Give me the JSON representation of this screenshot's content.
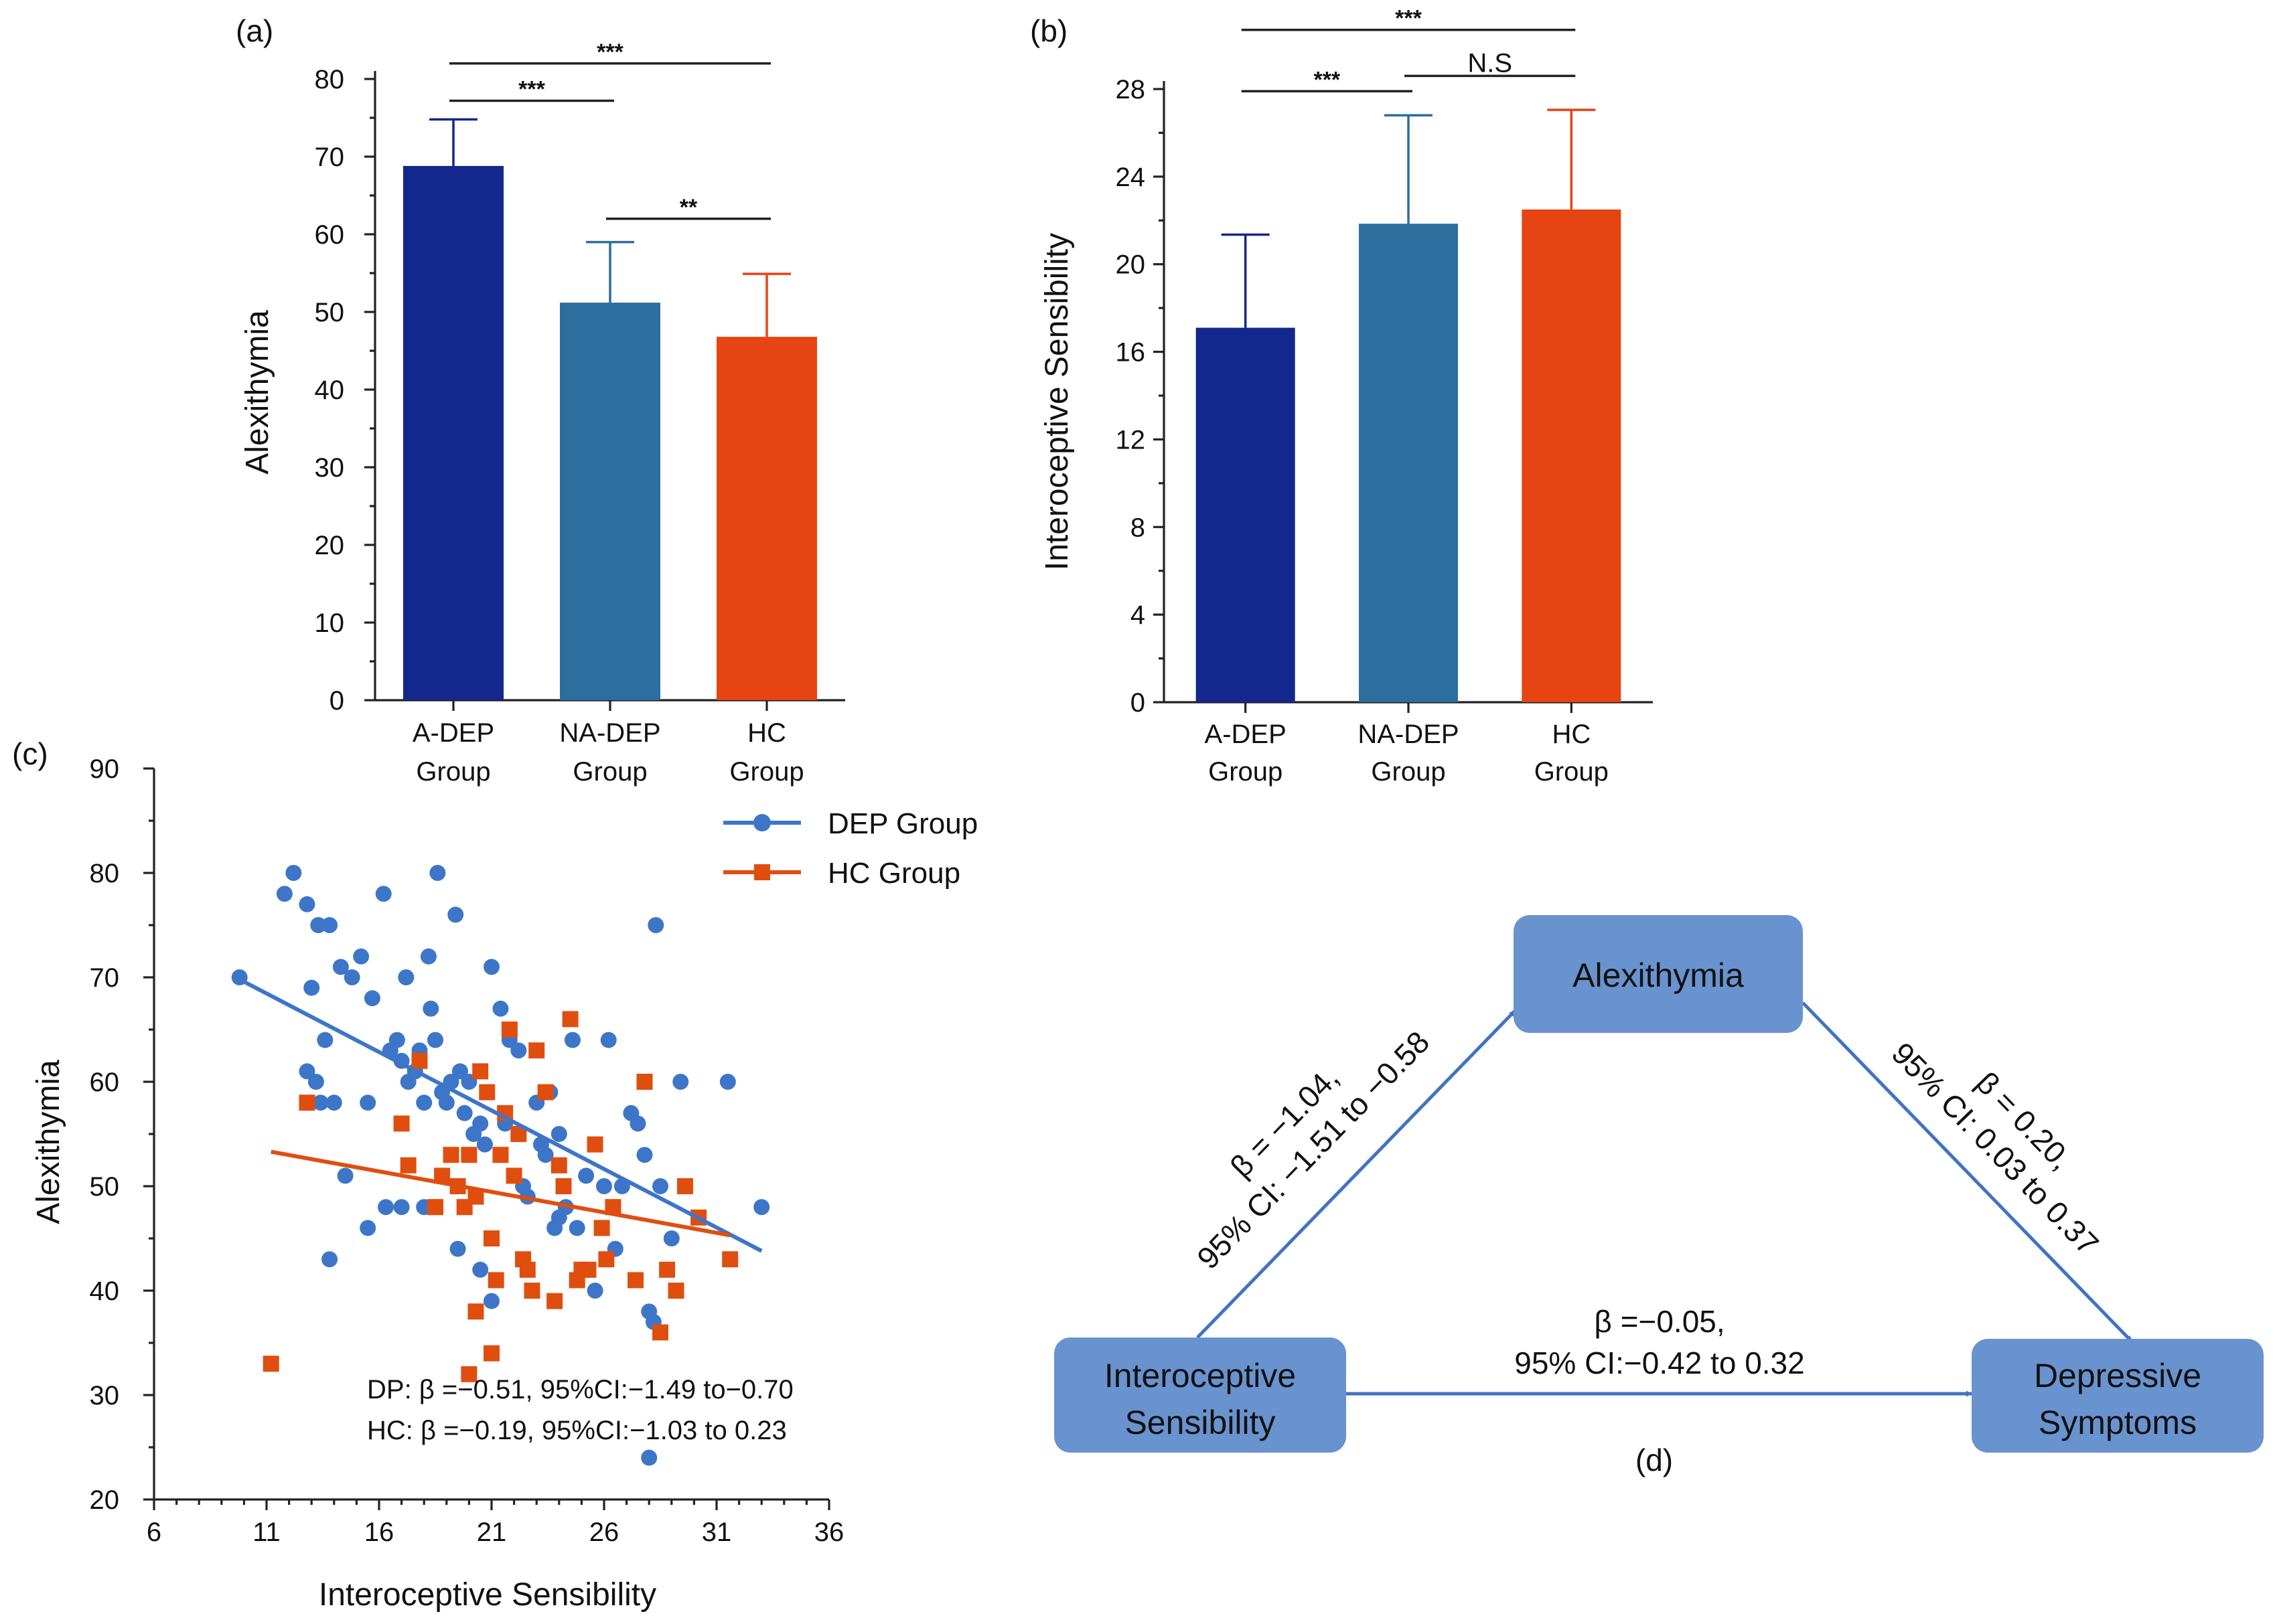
{
  "colors": {
    "adep": "#13278D",
    "nadep": "#2C6E9E",
    "hc": "#E64412",
    "dep_scatter": "#3D76C9",
    "hc_scatter": "#E04E0F",
    "mediation_box": "#6993CF",
    "mediation_arrow": "#4173C2"
  },
  "chart_data": [
    {
      "id": "a",
      "panel_label": "(a)",
      "type": "bar",
      "ylabel": "Alexithymia",
      "ylim": [
        0,
        80
      ],
      "yticks": [
        0,
        10,
        20,
        30,
        40,
        50,
        60,
        70,
        80
      ],
      "categories": [
        {
          "line1": "A-DEP",
          "line2": "Group"
        },
        {
          "line1": "NA-DEP",
          "line2": "Group"
        },
        {
          "line1": "HC",
          "line2": "Group"
        }
      ],
      "values": [
        68.8,
        51.2,
        46.8
      ],
      "errors": [
        6.0,
        7.8,
        8.1
      ],
      "significance": [
        {
          "from": 0,
          "to": 2,
          "label": "***",
          "y": 82.0
        },
        {
          "from": 0,
          "to": 1,
          "label": "***",
          "y": 77.2
        },
        {
          "from": 1,
          "to": 2,
          "label": "**",
          "y": 62.0
        }
      ]
    },
    {
      "id": "b",
      "panel_label": "(b)",
      "type": "bar",
      "ylabel": "Interoceptive Sensibility",
      "ylim": [
        0,
        28
      ],
      "yticks": [
        0,
        4,
        8,
        12,
        16,
        20,
        24,
        28
      ],
      "categories": [
        {
          "line1": "A-DEP",
          "line2": "Group"
        },
        {
          "line1": "NA-DEP",
          "line2": "Group"
        },
        {
          "line1": "HC",
          "line2": "Group"
        }
      ],
      "values": [
        17.1,
        21.85,
        22.5
      ],
      "errors": [
        4.25,
        4.95,
        4.55
      ],
      "significance": [
        {
          "from": 0,
          "to": 2,
          "label": "***",
          "y": 30.7
        },
        {
          "from": 0,
          "to": 1,
          "label": "***",
          "y": 27.9
        },
        {
          "from": 1,
          "to": 2,
          "label": "N.S",
          "y": 28.6
        }
      ]
    },
    {
      "id": "c",
      "panel_label": "(c)",
      "type": "scatter",
      "xlabel": "Interoceptive Sensibility",
      "ylabel": "Alexithymia",
      "xlim": [
        6,
        36
      ],
      "ylim": [
        20,
        90
      ],
      "xticks": [
        6,
        11,
        16,
        21,
        26,
        31,
        36
      ],
      "yticks": [
        20,
        30,
        40,
        50,
        60,
        70,
        80,
        90
      ],
      "legend": [
        "DEP Group",
        "HC Group"
      ],
      "series": [
        {
          "name": "DEP Group",
          "marker": "circle",
          "fit": {
            "x": [
              9.8,
              33.0
            ],
            "y": [
              69.8,
              43.8
            ]
          },
          "points": [
            [
              9.8,
              70
            ],
            [
              11.8,
              78
            ],
            [
              12.2,
              80
            ],
            [
              12.8,
              77
            ],
            [
              13.0,
              69
            ],
            [
              13.3,
              75
            ],
            [
              13.8,
              75
            ],
            [
              13.6,
              64
            ],
            [
              14.0,
              58
            ],
            [
              12.8,
              61
            ],
            [
              13.2,
              60
            ],
            [
              13.4,
              58
            ],
            [
              14.3,
              71
            ],
            [
              14.5,
              51
            ],
            [
              14.8,
              70
            ],
            [
              15.2,
              72
            ],
            [
              15.5,
              58
            ],
            [
              15.7,
              68
            ],
            [
              16.2,
              78
            ],
            [
              16.5,
              63
            ],
            [
              16.8,
              64
            ],
            [
              17.0,
              62
            ],
            [
              17.2,
              70
            ],
            [
              17.3,
              60
            ],
            [
              17.6,
              61
            ],
            [
              17.8,
              63
            ],
            [
              18.0,
              58
            ],
            [
              18.2,
              72
            ],
            [
              18.3,
              67
            ],
            [
              18.5,
              64
            ],
            [
              18.6,
              80
            ],
            [
              18.8,
              59
            ],
            [
              19.0,
              58
            ],
            [
              19.2,
              60
            ],
            [
              19.4,
              76
            ],
            [
              19.6,
              61
            ],
            [
              19.8,
              57
            ],
            [
              20.0,
              60
            ],
            [
              20.2,
              55
            ],
            [
              20.5,
              56
            ],
            [
              20.7,
              54
            ],
            [
              21.0,
              71
            ],
            [
              21.4,
              67
            ],
            [
              21.6,
              56
            ],
            [
              21.8,
              64
            ],
            [
              22.2,
              63
            ],
            [
              22.4,
              50
            ],
            [
              22.6,
              49
            ],
            [
              23.0,
              58
            ],
            [
              23.2,
              54
            ],
            [
              23.4,
              53
            ],
            [
              23.6,
              59
            ],
            [
              24.0,
              55
            ],
            [
              24.3,
              48
            ],
            [
              24.6,
              64
            ],
            [
              24.8,
              46
            ],
            [
              25.2,
              51
            ],
            [
              25.6,
              40
            ],
            [
              26.0,
              50
            ],
            [
              26.2,
              64
            ],
            [
              26.5,
              44
            ],
            [
              26.8,
              50
            ],
            [
              27.2,
              57
            ],
            [
              27.5,
              56
            ],
            [
              27.8,
              53
            ],
            [
              28.0,
              38
            ],
            [
              28.2,
              37
            ],
            [
              28.3,
              75
            ],
            [
              28.5,
              50
            ],
            [
              29.0,
              45
            ],
            [
              29.4,
              60
            ],
            [
              31.5,
              60
            ],
            [
              33.0,
              48
            ],
            [
              28.0,
              24
            ],
            [
              17.0,
              48
            ],
            [
              18.0,
              48
            ],
            [
              19.5,
              44
            ],
            [
              20.5,
              42
            ],
            [
              21.0,
              39
            ],
            [
              23.8,
              46
            ],
            [
              24.0,
              47
            ],
            [
              16.3,
              48
            ],
            [
              15.5,
              46
            ],
            [
              13.8,
              43
            ]
          ]
        },
        {
          "name": "HC Group",
          "marker": "square",
          "fit": {
            "x": [
              11.2,
              31.6
            ],
            "y": [
              53.3,
              45.3
            ]
          },
          "points": [
            [
              11.2,
              33
            ],
            [
              12.8,
              58
            ],
            [
              17.0,
              56
            ],
            [
              17.3,
              52
            ],
            [
              17.8,
              62
            ],
            [
              18.5,
              48
            ],
            [
              18.8,
              51
            ],
            [
              19.2,
              53
            ],
            [
              19.5,
              50
            ],
            [
              19.8,
              48
            ],
            [
              20.0,
              53
            ],
            [
              20.3,
              49
            ],
            [
              20.5,
              61
            ],
            [
              20.8,
              59
            ],
            [
              21.0,
              45
            ],
            [
              21.2,
              41
            ],
            [
              21.4,
              53
            ],
            [
              21.6,
              57
            ],
            [
              21.8,
              65
            ],
            [
              22.0,
              51
            ],
            [
              22.2,
              55
            ],
            [
              22.4,
              43
            ],
            [
              22.6,
              42
            ],
            [
              22.8,
              40
            ],
            [
              23.0,
              63
            ],
            [
              23.4,
              59
            ],
            [
              23.8,
              39
            ],
            [
              24.0,
              52
            ],
            [
              24.2,
              50
            ],
            [
              24.5,
              66
            ],
            [
              24.8,
              41
            ],
            [
              25.0,
              42
            ],
            [
              25.3,
              42
            ],
            [
              25.6,
              54
            ],
            [
              25.9,
              46
            ],
            [
              26.1,
              43
            ],
            [
              26.4,
              48
            ],
            [
              27.4,
              41
            ],
            [
              27.8,
              60
            ],
            [
              28.5,
              36
            ],
            [
              28.8,
              42
            ],
            [
              29.2,
              40
            ],
            [
              29.6,
              50
            ],
            [
              30.2,
              47
            ],
            [
              31.6,
              43
            ],
            [
              21.0,
              34
            ],
            [
              20.3,
              38
            ],
            [
              20.0,
              32
            ]
          ]
        }
      ],
      "annotations": [
        "DP: β =−0.51, 95%CI:−1.49 to−0.70",
        "HC: β =−0.19, 95%CI:−1.03 to 0.23"
      ]
    }
  ],
  "mediation": {
    "panel_label": "(d)",
    "nodes": {
      "alexithymia": "Alexithymia",
      "interoceptive_line1": "Interoceptive",
      "interoceptive_line2": "Sensibility",
      "depressive_line1": "Depressive",
      "depressive_line2": "Symptoms"
    },
    "paths": {
      "a_line1": "β = −1.04,",
      "a_line2": "95% CI: −1.51 to −0.58",
      "b_line1": "β = 0.20,",
      "b_line2": "95% CI: 0.03 to 0.37",
      "c_line1": "β =−0.05,",
      "c_line2": "95% CI:−0.42 to 0.32"
    }
  }
}
